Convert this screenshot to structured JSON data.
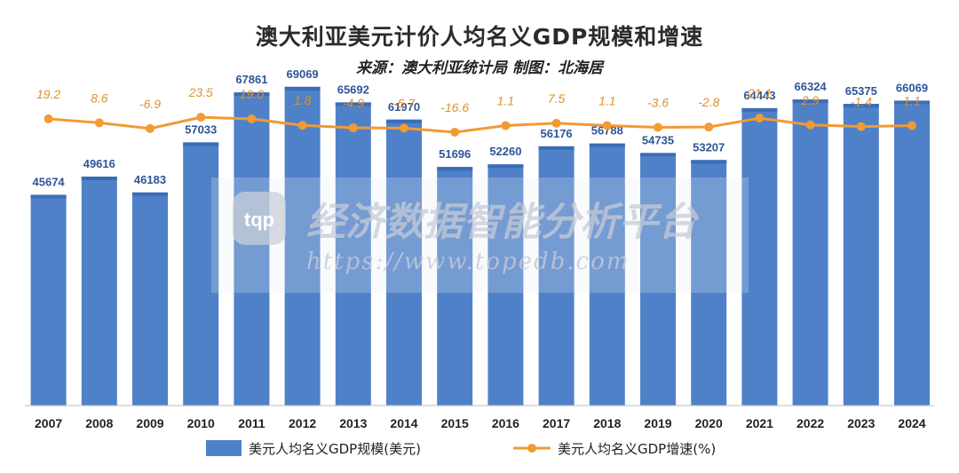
{
  "chart_data": {
    "type": "bar",
    "title": "澳大利亚美元计价人均名义GDP规模和增速",
    "subtitle": "来源：澳大利亚统计局 制图：北海居",
    "categories": [
      "2007",
      "2008",
      "2009",
      "2010",
      "2011",
      "2012",
      "2013",
      "2014",
      "2015",
      "2016",
      "2017",
      "2018",
      "2019",
      "2020",
      "2021",
      "2022",
      "2023",
      "2024"
    ],
    "series": [
      {
        "name": "美元人均名义GDP规模(美元)",
        "type": "bar",
        "values": [
          45674,
          49616,
          46183,
          57033,
          67861,
          69069,
          65692,
          61970,
          51696,
          52260,
          56176,
          56788,
          54735,
          53207,
          64443,
          66324,
          65375,
          66069
        ],
        "labels": [
          "45674",
          "49616",
          "46183",
          "57033",
          "67861",
          "69069",
          "65692",
          "61970",
          "51696",
          "52260",
          "56176",
          "56788",
          "54735",
          "53207",
          "64443",
          "66324",
          "65375",
          "66069"
        ]
      },
      {
        "name": "美元人均名义GDP增速(%)",
        "type": "line",
        "values": [
          19.2,
          8.6,
          -6.9,
          23.5,
          19.0,
          1.8,
          -4.9,
          -5.7,
          -16.6,
          1.1,
          7.5,
          1.1,
          -3.6,
          -2.8,
          21.1,
          2.9,
          -1.4,
          1.1
        ],
        "labels": [
          "19.2",
          "8.6",
          "-6.9",
          "23.5",
          "19.0",
          "1.8",
          "-4.9",
          "-5.7",
          "-16.6",
          "1.1",
          "7.5",
          "1.1",
          "-3.6",
          "-2.8",
          "21.1",
          "2.9",
          "-1.4",
          "1.1"
        ]
      }
    ],
    "ylim_bar": [
      0,
      75000
    ],
    "ylim_line": [
      -40,
      40
    ],
    "legend_position": "bottom",
    "colors": {
      "bar": "#4f81c9",
      "bar_top": "#3a6db8",
      "line": "#f29a33",
      "bar_label": "#2f5597",
      "line_label": "#e0902c"
    }
  },
  "watermark": {
    "logo_text": "tqp",
    "name": "经济数据智能分析平台",
    "url": "https://www.topedb.com"
  }
}
